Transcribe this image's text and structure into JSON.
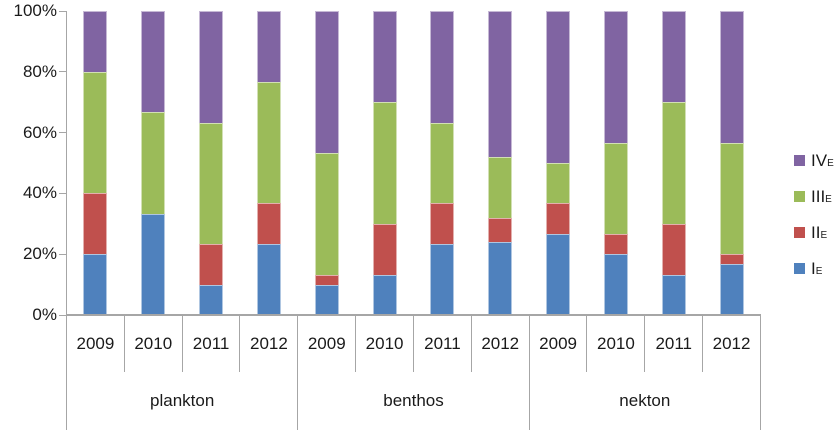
{
  "chart_data": {
    "type": "bar",
    "variant": "stacked-100-percent",
    "title": "",
    "xlabel": "",
    "ylabel": "",
    "grid": false,
    "y_axis": {
      "min": 0,
      "max": 100,
      "ticks": [
        "0%",
        "20%",
        "40%",
        "60%",
        "80%",
        "100%"
      ]
    },
    "groups": [
      {
        "label": "plankton",
        "years": [
          "2009",
          "2010",
          "2011",
          "2012"
        ]
      },
      {
        "label": "benthos",
        "years": [
          "2009",
          "2010",
          "2011",
          "2012"
        ]
      },
      {
        "label": "nekton",
        "years": [
          "2009",
          "2010",
          "2011",
          "2012"
        ]
      }
    ],
    "series": [
      {
        "name": "I",
        "subscript": "E",
        "color": "#4F81BD",
        "values": [
          20,
          33.3,
          10,
          23.3,
          10,
          13.3,
          23.3,
          24,
          26.7,
          20,
          13.3,
          16.7
        ]
      },
      {
        "name": "II",
        "subscript": "E",
        "color": "#C0504D",
        "values": [
          20,
          0,
          13.3,
          13.4,
          3.3,
          16.7,
          13.4,
          8,
          10,
          6.7,
          16.7,
          3.3
        ]
      },
      {
        "name": "III",
        "subscript": "E",
        "color": "#9BBB59",
        "values": [
          40,
          33.4,
          40,
          40,
          40,
          40,
          26.6,
          20,
          13.3,
          30,
          40,
          36.7
        ]
      },
      {
        "name": "IV",
        "subscript": "E",
        "color": "#8064A2",
        "values": [
          20,
          33.3,
          36.7,
          23.3,
          46.7,
          30,
          36.7,
          48,
          50,
          43.3,
          30,
          43.3
        ]
      }
    ],
    "legend": {
      "position": "right",
      "order_top_to_bottom": [
        "IV",
        "III",
        "II",
        "I"
      ]
    },
    "axis_color": "#A6A6A6",
    "text_color": "#1A1A1A"
  }
}
